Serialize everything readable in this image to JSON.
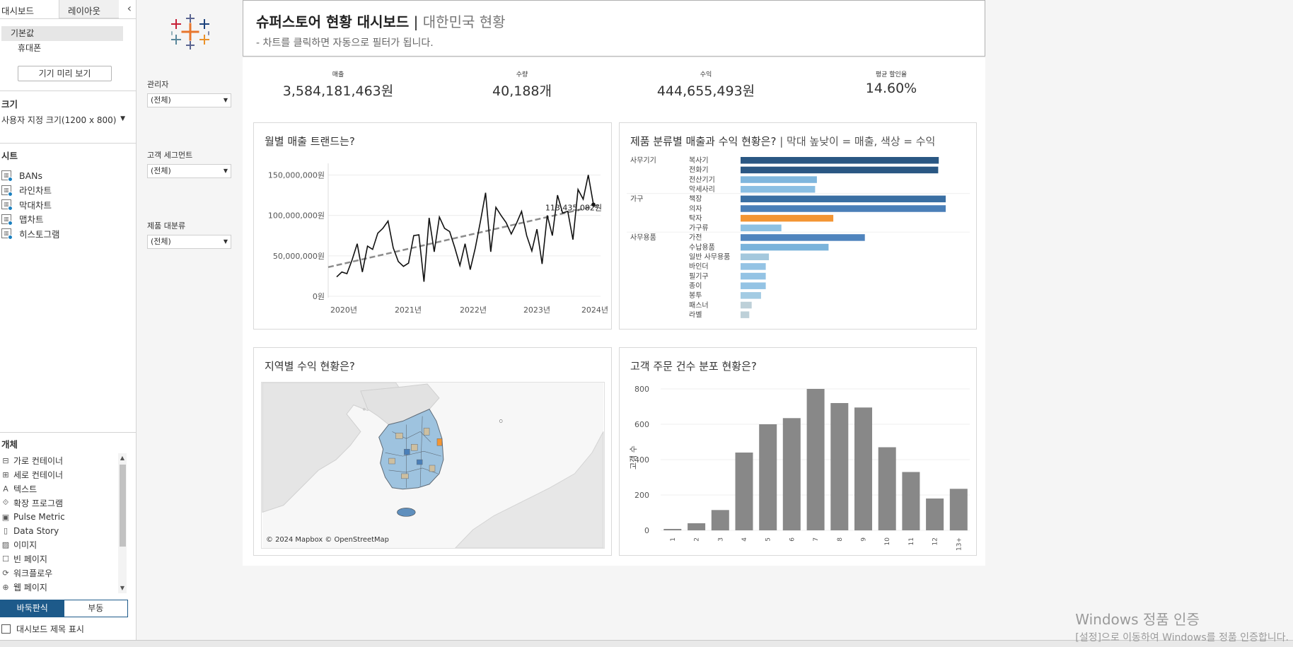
{
  "left_panel": {
    "tabs": [
      "대시보드",
      "레이아웃"
    ],
    "collapse_icon": "‹",
    "devices": [
      "기본값",
      "휴대폰"
    ],
    "preview_button": "기기 미리 보기",
    "size_title": "크기",
    "size_value": "사용자 지정 크기(1200 x 800)",
    "sheets_title": "시트",
    "sheets": [
      "BANs",
      "라인차트",
      "막대차트",
      "맵차트",
      "히스토그램"
    ],
    "objects_title": "개체",
    "objects": [
      {
        "icon": "⊟",
        "label": "가로 컨테이너"
      },
      {
        "icon": "⊞",
        "label": "세로 컨테이너"
      },
      {
        "icon": "A",
        "label": "텍스트"
      },
      {
        "icon": "⟐",
        "label": "확장 프로그램"
      },
      {
        "icon": "▣",
        "label": "Pulse Metric"
      },
      {
        "icon": "▯",
        "label": "Data Story"
      },
      {
        "icon": "▨",
        "label": "이미지"
      },
      {
        "icon": "☐",
        "label": "빈 페이지"
      },
      {
        "icon": "⟳",
        "label": "워크플로우"
      },
      {
        "icon": "⊕",
        "label": "웹 페이지"
      }
    ],
    "mode_tiled": "바둑판식",
    "mode_floating": "부동",
    "show_title": "대시보드 제목 표시"
  },
  "filters": [
    {
      "label": "관리자",
      "value": "(전체)"
    },
    {
      "label": "고객 세그먼트",
      "value": "(전체)"
    },
    {
      "label": "제품 대분류",
      "value": "(전체)"
    }
  ],
  "header": {
    "title_main": "슈퍼스토어 현황 대시보드",
    "title_sep": " | ",
    "title_sub": "대한민국 현황",
    "subtitle": "- 차트를 클릭하면 자동으로 필터가 됩니다."
  },
  "kpis": [
    {
      "label": "매출",
      "value": "3,584,181,463원"
    },
    {
      "label": "수량",
      "value": "40,188개"
    },
    {
      "label": "수익",
      "value": "444,655,493원"
    },
    {
      "label": "평균 할인율",
      "value": "14.60%"
    }
  ],
  "line_card": {
    "title": "월별 매출 트랜드는?"
  },
  "bar_card": {
    "title": "제품 분류별 매출과 수익 현황은?",
    "title_note": " | 막대 높낮이 = 매출, 색상 = 수익"
  },
  "map_card": {
    "title": "지역별 수익 현황은?",
    "attribution": "© 2024 Mapbox © OpenStreetMap"
  },
  "hist_card": {
    "title": "고객 주문 건수 분포 현황은?",
    "ylabel": "고객 수"
  },
  "chart_data": [
    {
      "type": "line",
      "title": "월별 매출 트랜드는?",
      "x_tick_labels": [
        "2020년",
        "2021년",
        "2022년",
        "2023년",
        "2024년"
      ],
      "y_tick_labels": [
        "0원",
        "50,000,000원",
        "100,000,000원",
        "150,000,000원"
      ],
      "ylim": [
        0,
        160000000
      ],
      "annotation": "113,435,082원",
      "series": [
        {
          "values": [
            24000000,
            30000000,
            28000000,
            45000000,
            65000000,
            30000000,
            62000000,
            58000000,
            78000000,
            84000000,
            93000000,
            60000000,
            43000000,
            37000000,
            41000000,
            75000000,
            76000000,
            18000000,
            97000000,
            55000000,
            98000000,
            84000000,
            80000000,
            60000000,
            38000000,
            65000000,
            33000000,
            60000000,
            93000000,
            128000000,
            55000000,
            110000000,
            100000000,
            91000000,
            77000000,
            90000000,
            105000000,
            75000000,
            56000000,
            83000000,
            40000000,
            100000000,
            75000000,
            125000000,
            103000000,
            105000000,
            70000000,
            132000000,
            120000000,
            150000000,
            113435082
          ]
        }
      ],
      "trend": {
        "style": "dashed",
        "start": 36000000,
        "end": 113000000
      }
    },
    {
      "type": "bar",
      "orientation": "horizontal",
      "title": "제품 분류별 매출과 수익 현황은?",
      "groups": [
        {
          "name": "사무기기",
          "items": [
            {
              "label": "복사기",
              "value": 100,
              "color": "#2a5783"
            },
            {
              "label": "전화기",
              "value": 99.7,
              "color": "#2a5783"
            },
            {
              "label": "전산기기",
              "value": 38.5,
              "color": "#7fb6dd"
            },
            {
              "label": "악세사리",
              "value": 37.6,
              "color": "#8bbfe3"
            }
          ]
        },
        {
          "name": "가구",
          "items": [
            {
              "label": "책장",
              "value": 103.5,
              "color": "#3a6fa3"
            },
            {
              "label": "의자",
              "value": 103.5,
              "color": "#4a7fb8"
            },
            {
              "label": "탁자",
              "value": 46.8,
              "color": "#f39533"
            },
            {
              "label": "가구류",
              "value": 20.6,
              "color": "#8dc1e3"
            }
          ]
        },
        {
          "name": "사무용품",
          "items": [
            {
              "label": "가전",
              "value": 62.7,
              "color": "#4f84bd"
            },
            {
              "label": "수납용품",
              "value": 44.4,
              "color": "#7ab3db"
            },
            {
              "label": "일반 사무용품",
              "value": 14.3,
              "color": "#a4c8dd"
            },
            {
              "label": "바인더",
              "value": 12.7,
              "color": "#94c3e4"
            },
            {
              "label": "필기구",
              "value": 12.7,
              "color": "#94c3e4"
            },
            {
              "label": "종이",
              "value": 12.7,
              "color": "#94c3e4"
            },
            {
              "label": "봉투",
              "value": 10.3,
              "color": "#a3cbe3"
            },
            {
              "label": "패스너",
              "value": 5.6,
              "color": "#bdd0d8"
            },
            {
              "label": "라벨",
              "value": 4.4,
              "color": "#bdd0d8"
            }
          ]
        }
      ]
    },
    {
      "type": "bar",
      "title": "고객 주문 건수 분포 현황은?",
      "ylabel": "고객 수",
      "categories": [
        "1",
        "2",
        "3",
        "4",
        "5",
        "6",
        "7",
        "8",
        "9",
        "10",
        "11",
        "12",
        "13+"
      ],
      "values": [
        8,
        40,
        115,
        440,
        600,
        635,
        800,
        720,
        695,
        470,
        330,
        180,
        235
      ],
      "y_tick_labels": [
        "0",
        "200",
        "400",
        "600",
        "800"
      ],
      "ylim": [
        0,
        800
      ],
      "color": "#888888"
    }
  ],
  "watermark": {
    "line1": "Windows 정품 인증",
    "line2": "[설정]으로 이동하여 Windows를 정품 인증합니다."
  }
}
